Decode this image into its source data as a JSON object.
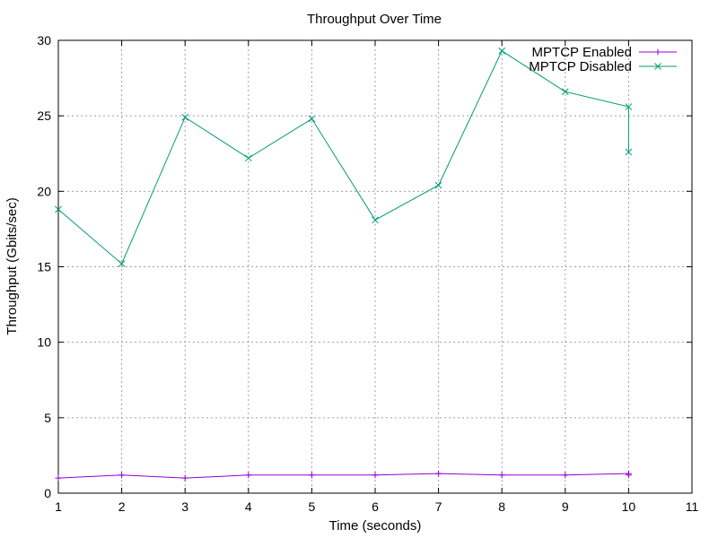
{
  "chart_data": {
    "type": "line",
    "title": "Throughput Over Time",
    "xlabel": "Time (seconds)",
    "ylabel": "Throughput (Gbits/sec)",
    "xlim": [
      1,
      11
    ],
    "ylim": [
      0,
      30
    ],
    "x_ticks": [
      1,
      2,
      3,
      4,
      5,
      6,
      7,
      8,
      9,
      10,
      11
    ],
    "y_ticks": [
      0,
      5,
      10,
      15,
      20,
      25,
      30
    ],
    "grid": true,
    "legend_position": "top-right",
    "series": [
      {
        "name": "MPTCP Enabled",
        "color": "#9400d3",
        "marker": "plus",
        "x": [
          1,
          2,
          3,
          4,
          5,
          6,
          7,
          8,
          9,
          10,
          10
        ],
        "values": [
          1.0,
          1.2,
          1.0,
          1.2,
          1.2,
          1.2,
          1.3,
          1.2,
          1.2,
          1.3,
          1.2
        ]
      },
      {
        "name": "MPTCP Disabled",
        "color": "#009e73",
        "marker": "cross",
        "x": [
          1,
          2,
          3,
          4,
          5,
          6,
          7,
          8,
          9,
          10,
          10
        ],
        "values": [
          18.8,
          15.2,
          24.9,
          22.2,
          24.8,
          18.1,
          20.4,
          29.3,
          26.6,
          25.6,
          22.6
        ]
      }
    ]
  }
}
